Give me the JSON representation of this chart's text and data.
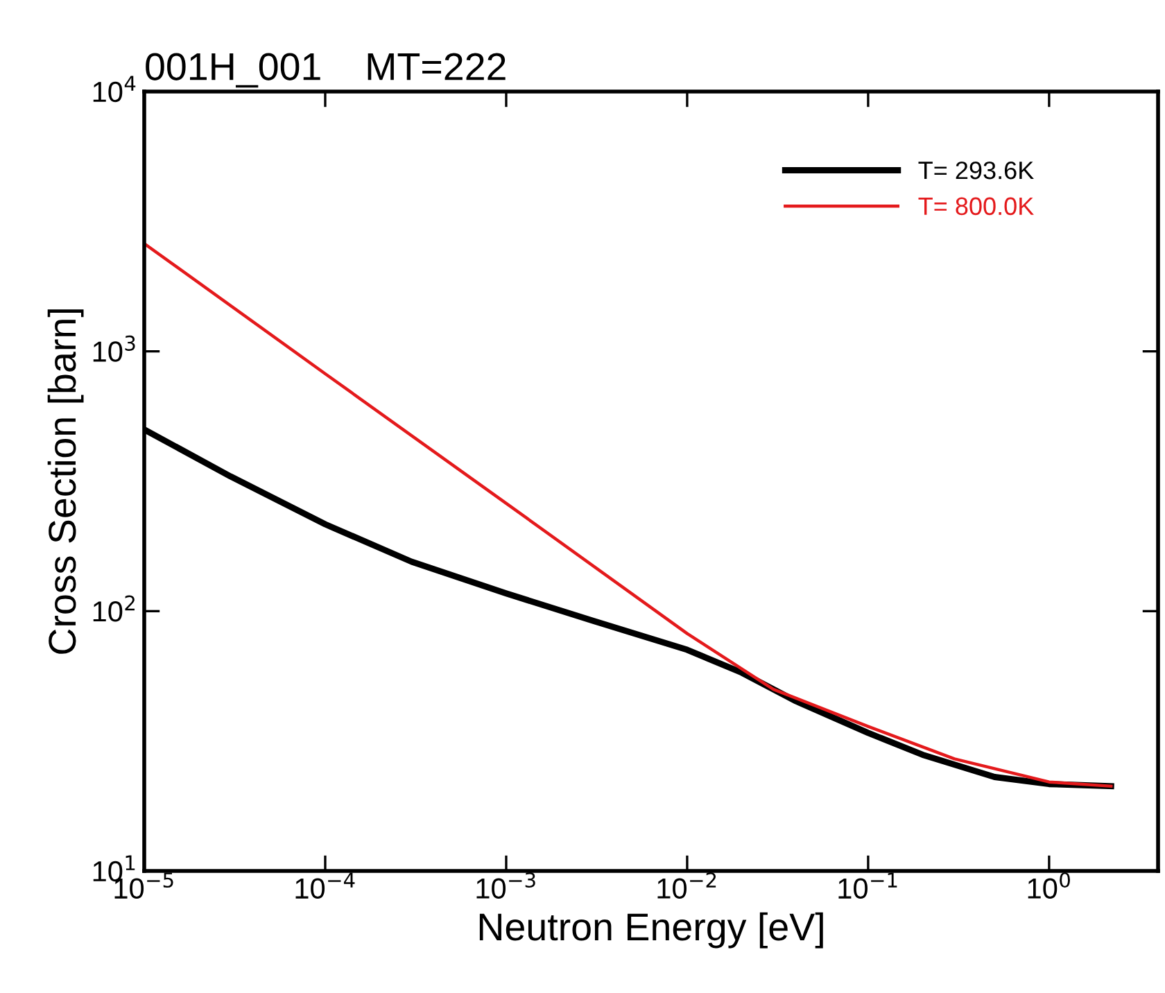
{
  "chart_data": {
    "type": "line",
    "title": "001H_001    MT=222",
    "xlabel": "Neutron Energy [eV]",
    "ylabel": "Cross Section [barn]",
    "log": "xy",
    "grid": false,
    "legend": "top right",
    "line_style": "solid",
    "marker": "none",
    "xlim": [
      1e-05,
      4
    ],
    "ylim": [
      10,
      10000
    ],
    "xticks": [
      {
        "value": 1e-05,
        "label": "10$^{−5}$"
      },
      {
        "value": 0.0001,
        "label": "10$^{−4}$"
      },
      {
        "value": 0.001,
        "label": "10$^{−3}$"
      },
      {
        "value": 0.01,
        "label": "10$^{−2}$"
      },
      {
        "value": 0.1,
        "label": "10$^{−1}$"
      },
      {
        "value": 1,
        "label": "10$^{0}$"
      }
    ],
    "yticks": [
      {
        "value": 10,
        "label": "10$^{1}$"
      },
      {
        "value": 100,
        "label": "10$^{2}$"
      },
      {
        "value": 1000,
        "label": "10$^{3}$"
      },
      {
        "value": 10000,
        "label": "10$^{4}$"
      }
    ],
    "series": [
      {
        "name": "T= 293.6K",
        "color": "#000000",
        "x": [
          1e-05,
          3e-05,
          0.0001,
          0.0003,
          0.001,
          0.003,
          0.01,
          0.02,
          0.04,
          0.1,
          0.2,
          0.5,
          1,
          2.2
        ],
        "values": [
          500,
          330,
          216,
          155,
          117,
          92,
          71,
          58,
          45,
          34,
          28,
          23,
          21.6,
          21.2
        ]
      },
      {
        "name": "T= 800.0K",
        "color": "#e41a1c",
        "x": [
          1e-05,
          0.0001,
          0.001,
          0.01,
          0.03,
          0.1,
          0.3,
          1,
          2.2
        ],
        "values": [
          2600,
          820,
          260,
          82,
          50,
          36,
          27,
          22,
          21.2
        ]
      }
    ]
  }
}
